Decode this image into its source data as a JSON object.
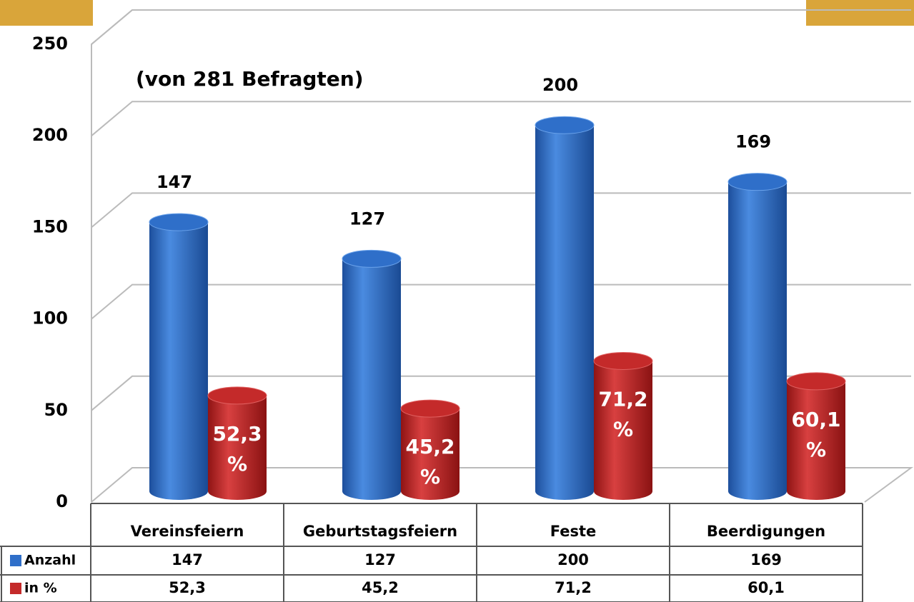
{
  "chart_data": {
    "type": "bar",
    "subtitle": "(von 281 Befragten)",
    "categories": [
      "Vereinsfeiern",
      "Geburtstagsfeiern",
      "Feste",
      "Beerdigungen"
    ],
    "series": [
      {
        "name": "Anzahl",
        "color": "#2f6fc9",
        "values": [
          147,
          127,
          200,
          169
        ]
      },
      {
        "name": "in %",
        "color": "#c42a2a",
        "values": [
          52.3,
          45.2,
          71.2,
          60.1
        ],
        "value_labels": [
          "52,3 %",
          "45,2 %",
          "71,2 %",
          "60,1 %"
        ],
        "table_labels": [
          "52,3",
          "45,2",
          "71,2",
          "60,1"
        ]
      }
    ],
    "ylim": [
      0,
      250
    ],
    "yticks": [
      0,
      50,
      100,
      150,
      200,
      250
    ],
    "grid": true
  }
}
